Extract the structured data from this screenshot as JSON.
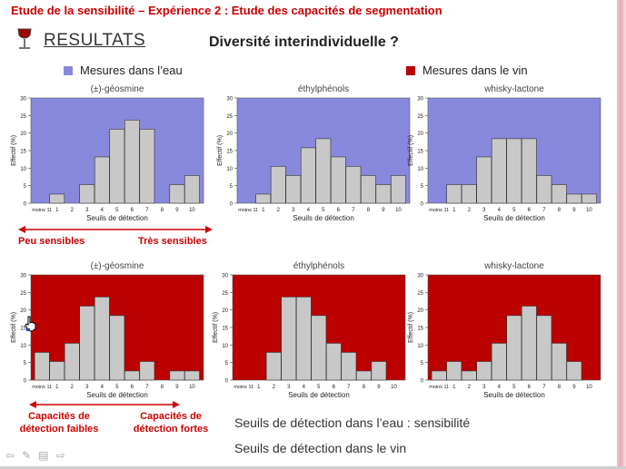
{
  "header": {
    "title": "Etude de la sensibilité – Expérience 2 : Etude des capacités de segmentation"
  },
  "section": {
    "results_label": "RESULTATS",
    "subtitle": "Diversité interindividuelle ?"
  },
  "legend": [
    {
      "label": "Mesures dans l’eau",
      "color": "#8888dd"
    },
    {
      "label": "Mesures dans le vin",
      "color": "#bb0000"
    }
  ],
  "colors": {
    "water_bg": "#8888dd",
    "wine_bg": "#bb0000",
    "bar": "#c8c8c8",
    "accent": "#cc0000"
  },
  "chart_data": [
    {
      "type": "bar",
      "title": "(±)-géosmine",
      "medium": "eau",
      "xlabel": "Seuils de détection",
      "ylabel": "Effectif (%)",
      "ylim": [
        0,
        30
      ],
      "yticks": [
        0,
        5,
        10,
        15,
        20,
        25,
        30
      ],
      "categories": [
        "moins 11",
        "1",
        "2",
        "3",
        "4",
        "5",
        "6",
        "7",
        "8",
        "9",
        "10"
      ],
      "values": [
        0,
        2.6,
        0,
        5.3,
        13.2,
        21.1,
        23.7,
        21.1,
        0,
        5.3,
        7.9
      ]
    },
    {
      "type": "bar",
      "title": "éthylphénols",
      "medium": "eau",
      "xlabel": "Seuils de détection",
      "ylabel": "Effectif (%)",
      "ylim": [
        0,
        30
      ],
      "yticks": [
        0,
        5,
        10,
        15,
        20,
        25,
        30
      ],
      "categories": [
        "moins 11",
        "1",
        "2",
        "3",
        "4",
        "5",
        "6",
        "7",
        "8",
        "9",
        "10"
      ],
      "values": [
        0,
        2.6,
        10.5,
        7.9,
        15.8,
        18.4,
        13.2,
        10.5,
        7.9,
        5.3,
        7.9
      ]
    },
    {
      "type": "bar",
      "title": "whisky-lactone",
      "medium": "eau",
      "xlabel": "Seuils de détection",
      "ylabel": "Effectif (%)",
      "ylim": [
        0,
        30
      ],
      "yticks": [
        0,
        5,
        10,
        15,
        20,
        25,
        30
      ],
      "categories": [
        "moins 11",
        "1",
        "2",
        "3",
        "4",
        "5",
        "6",
        "7",
        "8",
        "9",
        "10"
      ],
      "values": [
        0,
        5.3,
        5.3,
        13.2,
        18.4,
        18.4,
        18.4,
        7.9,
        5.3,
        2.6,
        2.6
      ]
    },
    {
      "type": "bar",
      "title": "(±)-géosmine",
      "medium": "vin",
      "xlabel": "Seuils de détection",
      "ylabel": "Effectif (%)",
      "ylim": [
        0,
        30
      ],
      "yticks": [
        0,
        5,
        10,
        15,
        20,
        25,
        30
      ],
      "categories": [
        "moins 11",
        "1",
        "2",
        "3",
        "4",
        "5",
        "6",
        "7",
        "8",
        "9",
        "10"
      ],
      "values": [
        7.9,
        5.3,
        10.5,
        21.1,
        23.7,
        18.4,
        2.6,
        5.3,
        0,
        2.6,
        2.6
      ]
    },
    {
      "type": "bar",
      "title": "éthylphénols",
      "medium": "vin",
      "xlabel": "Seuils de détection",
      "ylabel": "Effectif (%)",
      "ylim": [
        0,
        30
      ],
      "yticks": [
        0,
        5,
        10,
        15,
        20,
        25,
        30
      ],
      "categories": [
        "moins 11",
        "1",
        "2",
        "3",
        "4",
        "5",
        "6",
        "7",
        "8",
        "9",
        "10"
      ],
      "values": [
        0,
        0,
        7.9,
        23.7,
        23.7,
        18.4,
        10.5,
        7.9,
        2.6,
        5.3,
        0
      ]
    },
    {
      "type": "bar",
      "title": "whisky-lactone",
      "medium": "vin",
      "xlabel": "Seuils de détection",
      "ylabel": "Effectif (%)",
      "ylim": [
        0,
        30
      ],
      "yticks": [
        0,
        5,
        10,
        15,
        20,
        25,
        30
      ],
      "categories": [
        "moins 11",
        "1",
        "2",
        "3",
        "4",
        "5",
        "6",
        "7",
        "8",
        "9",
        "10"
      ],
      "values": [
        2.6,
        5.3,
        2.6,
        5.3,
        10.5,
        18.4,
        21.1,
        18.4,
        10.5,
        5.3,
        0
      ]
    }
  ],
  "annotations": {
    "peu_sensibles": "Peu sensibles",
    "tres_sensibles": "Très sensibles",
    "capacites_faibles_1": "Capacités de",
    "capacites_faibles_2": "détection faibles",
    "capacites_fortes_1": "Capacités de",
    "capacites_fortes_2": "détection fortes"
  },
  "bottom_text": {
    "line1": "Seuils de détection dans l’eau : sensibilité",
    "line2": "Seuils de détection dans le vin"
  },
  "nav_icons": [
    "arrow-left-icon",
    "pen-icon",
    "menu-icon",
    "arrow-right-icon"
  ]
}
